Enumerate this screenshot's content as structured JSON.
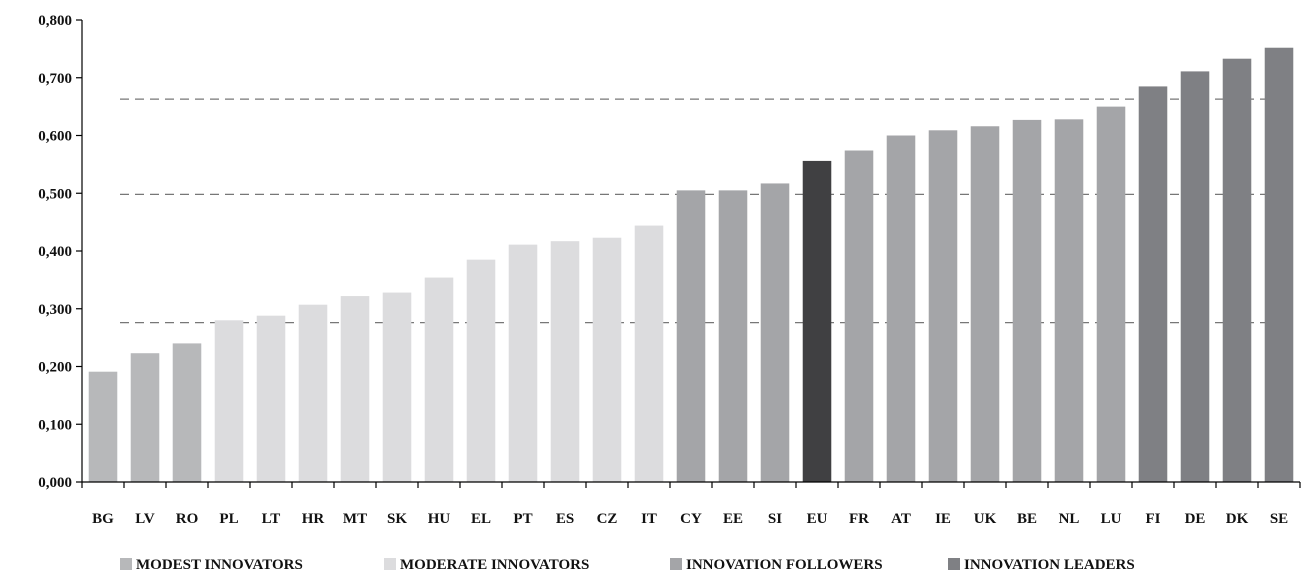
{
  "chart_data": {
    "type": "bar",
    "categories": [
      "BG",
      "LV",
      "RO",
      "PL",
      "LT",
      "HR",
      "MT",
      "SK",
      "HU",
      "EL",
      "PT",
      "ES",
      "CZ",
      "IT",
      "CY",
      "EE",
      "SI",
      "EU",
      "FR",
      "AT",
      "IE",
      "UK",
      "BE",
      "NL",
      "LU",
      "FI",
      "DE",
      "DK",
      "SE"
    ],
    "values": [
      0.191,
      0.223,
      0.24,
      0.28,
      0.288,
      0.307,
      0.322,
      0.328,
      0.354,
      0.385,
      0.411,
      0.417,
      0.423,
      0.444,
      0.505,
      0.505,
      0.517,
      0.556,
      0.574,
      0.6,
      0.609,
      0.616,
      0.627,
      0.628,
      0.65,
      0.685,
      0.711,
      0.733,
      0.752
    ],
    "groups": [
      "modest",
      "modest",
      "modest",
      "moderate",
      "moderate",
      "moderate",
      "moderate",
      "moderate",
      "moderate",
      "moderate",
      "moderate",
      "moderate",
      "moderate",
      "moderate",
      "follower",
      "follower",
      "follower",
      "eu",
      "follower",
      "follower",
      "follower",
      "follower",
      "follower",
      "follower",
      "follower",
      "leader",
      "leader",
      "leader",
      "leader"
    ],
    "group_colors": {
      "modest": "#b7b8ba",
      "moderate": "#dcdcde",
      "follower": "#a4a5a8",
      "eu": "#404042",
      "leader": "#7f8084"
    },
    "yticks": [
      "0,000",
      "0,100",
      "0,200",
      "0,300",
      "0,400",
      "0,500",
      "0,600",
      "0,700",
      "0,800"
    ],
    "ylim": [
      0,
      0.8
    ],
    "threshold_lines": [
      0.276,
      0.498,
      0.663
    ],
    "title": "",
    "xlabel": "",
    "ylabel": "",
    "legend": [
      {
        "name": "MODEST INNOVATORS",
        "color": "#b7b8ba"
      },
      {
        "name": "MODERATE INNOVATORS",
        "color": "#dcdcde"
      },
      {
        "name": "INNOVATION FOLLOWERS",
        "color": "#a4a5a8"
      },
      {
        "name": "INNOVATION LEADERS",
        "color": "#7f8084"
      }
    ],
    "legend_position": "bottom",
    "grid": false
  }
}
